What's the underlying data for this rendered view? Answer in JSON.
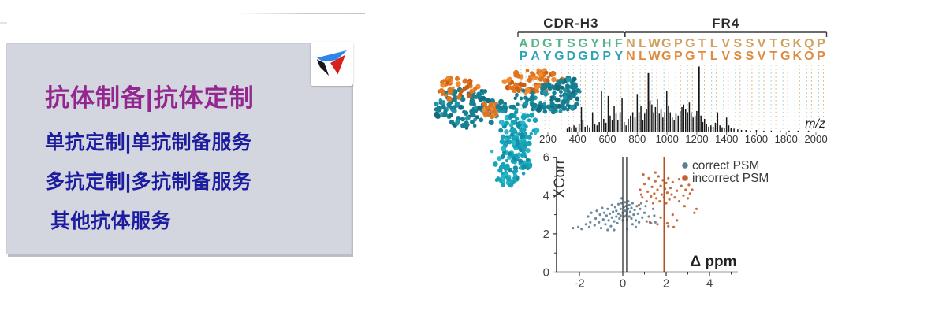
{
  "panel": {
    "title": "抗体制备|抗体定制",
    "items": [
      {
        "label": "单抗定制|单抗制备服务"
      },
      {
        "label": "多抗定制|多抗制备服务"
      },
      {
        "label": "其他抗体服务"
      }
    ],
    "colors": {
      "bg": "#d3d6de",
      "title": "#93278f",
      "item": "#1c1ca0"
    }
  },
  "logo": {
    "icon": "triangle-swoosh-logo",
    "colors": {
      "blue": "#2e86e8",
      "black": "#17171d",
      "red": "#d9201a"
    }
  },
  "figure": {
    "alignment": {
      "regions": [
        {
          "label": "CDR-H3",
          "start": 0,
          "end": 9
        },
        {
          "label": "FR4",
          "start": 9,
          "end": 26
        }
      ],
      "rows": [
        {
          "seq": "ADGTSGYHFNLWGPGTLVSSVTGKQP",
          "cdr_color": "#57b389",
          "fr_color": "#cfa05e"
        },
        {
          "seq": "PAYGDGDPYNLWGPGTLVSSVTGKOP",
          "cdr_color": "#2fa3b4",
          "fr_color": "#df8a3f"
        }
      ],
      "guide_colors": {
        "cdr": "#8ecbc6",
        "fr": "#dcb87f"
      },
      "label_color": "#2b2b2b"
    },
    "chart_data": [
      {
        "type": "bar",
        "name": "annotated-msms-spectrum",
        "xlabel": "m/z",
        "x_ticks": [
          200,
          400,
          600,
          800,
          1000,
          1200,
          1400,
          1600,
          1800,
          2000
        ],
        "xlim": [
          200,
          2000
        ],
        "ylim": [
          0,
          1
        ],
        "grid": false,
        "bar_color": "#161616",
        "axis_color": "#8a8a8a",
        "peaks": [
          [
            330,
            0.05
          ],
          [
            345,
            0.08
          ],
          [
            360,
            0.06
          ],
          [
            375,
            0.1
          ],
          [
            390,
            0.07
          ],
          [
            410,
            0.12
          ],
          [
            425,
            0.38
          ],
          [
            435,
            0.18
          ],
          [
            450,
            0.08
          ],
          [
            465,
            0.1
          ],
          [
            480,
            0.07
          ],
          [
            500,
            0.3
          ],
          [
            515,
            0.12
          ],
          [
            530,
            0.1
          ],
          [
            545,
            0.15
          ],
          [
            560,
            0.62
          ],
          [
            575,
            0.2
          ],
          [
            590,
            0.14
          ],
          [
            605,
            0.55
          ],
          [
            618,
            0.25
          ],
          [
            632,
            0.18
          ],
          [
            645,
            0.4
          ],
          [
            658,
            0.28
          ],
          [
            670,
            0.18
          ],
          [
            685,
            0.3
          ],
          [
            698,
            0.52
          ],
          [
            712,
            0.15
          ],
          [
            725,
            0.1
          ],
          [
            740,
            0.2
          ],
          [
            755,
            0.25
          ],
          [
            770,
            0.3
          ],
          [
            785,
            0.22
          ],
          [
            800,
            0.58
          ],
          [
            812,
            0.3
          ],
          [
            825,
            0.4
          ],
          [
            838,
            0.18
          ],
          [
            850,
            0.28
          ],
          [
            862,
            0.35
          ],
          [
            875,
            0.9
          ],
          [
            886,
            0.48
          ],
          [
            898,
            0.42
          ],
          [
            910,
            0.3
          ],
          [
            922,
            0.38
          ],
          [
            935,
            0.5
          ],
          [
            948,
            0.28
          ],
          [
            960,
            0.35
          ],
          [
            972,
            0.22
          ],
          [
            985,
            0.3
          ],
          [
            998,
            0.62
          ],
          [
            1010,
            0.4
          ],
          [
            1022,
            0.3
          ],
          [
            1035,
            0.22
          ],
          [
            1048,
            0.18
          ],
          [
            1060,
            0.28
          ],
          [
            1075,
            0.25
          ],
          [
            1088,
            0.32
          ],
          [
            1100,
            0.38
          ],
          [
            1112,
            0.42
          ],
          [
            1125,
            0.35
          ],
          [
            1138,
            0.3
          ],
          [
            1150,
            0.45
          ],
          [
            1162,
            0.3
          ],
          [
            1175,
            0.22
          ],
          [
            1188,
            0.25
          ],
          [
            1200,
            0.32
          ],
          [
            1215,
            1.0
          ],
          [
            1228,
            0.25
          ],
          [
            1240,
            0.15
          ],
          [
            1252,
            0.2
          ],
          [
            1265,
            0.12
          ],
          [
            1280,
            0.08
          ],
          [
            1295,
            0.1
          ],
          [
            1310,
            0.08
          ],
          [
            1325,
            0.14
          ],
          [
            1340,
            0.3
          ],
          [
            1355,
            0.1
          ],
          [
            1370,
            0.07
          ],
          [
            1385,
            0.06
          ],
          [
            1400,
            0.22
          ],
          [
            1415,
            0.1
          ],
          [
            1430,
            0.06
          ],
          [
            1450,
            0.05
          ],
          [
            1475,
            0.04
          ],
          [
            1500,
            0.03
          ],
          [
            1530,
            0.03
          ],
          [
            1560,
            0.02
          ],
          [
            1600,
            0.03
          ],
          [
            1650,
            0.02
          ],
          [
            1700,
            0.02
          ],
          [
            1760,
            0.02
          ],
          [
            1820,
            0.02
          ],
          [
            1880,
            0.02
          ],
          [
            1950,
            0.02
          ]
        ]
      },
      {
        "type": "scatter",
        "name": "psm-validation-plot",
        "xlabel": "Δ ppm",
        "ylabel": "XCorr",
        "xlim": [
          -3,
          5.3
        ],
        "ylim": [
          0,
          6
        ],
        "x_ticks": [
          -2,
          0,
          2,
          4
        ],
        "y_ticks": [
          0,
          2,
          4,
          6
        ],
        "legend_position": "top-right",
        "axis_color": "#333333",
        "tick_label_color": "#444444",
        "vlines": [
          {
            "x": 0.0,
            "color": "#4a4a4a"
          },
          {
            "x": 0.18,
            "color": "#4a4a4a"
          },
          {
            "x": 1.9,
            "color": "#b25121"
          }
        ],
        "series": [
          {
            "name": "correct PSM",
            "color": "#5b7f96",
            "points": [
              [
                -2.3,
                2.3
              ],
              [
                -2.05,
                2.35
              ],
              [
                -1.9,
                2.25
              ],
              [
                -1.7,
                2.5
              ],
              [
                -1.6,
                2.9
              ],
              [
                -1.55,
                2.35
              ],
              [
                -1.5,
                2.6
              ],
              [
                -1.45,
                3.1
              ],
              [
                -1.3,
                2.45
              ],
              [
                -1.25,
                2.8
              ],
              [
                -1.2,
                3.2
              ],
              [
                -1.1,
                2.6
              ],
              [
                -1.05,
                3.0
              ],
              [
                -1.0,
                2.3
              ],
              [
                -0.95,
                3.35
              ],
              [
                -0.9,
                2.75
              ],
              [
                -0.85,
                3.1
              ],
              [
                -0.8,
                2.5
              ],
              [
                -0.75,
                2.95
              ],
              [
                -0.7,
                3.3
              ],
              [
                -0.7,
                2.2
              ],
              [
                -0.65,
                2.7
              ],
              [
                -0.6,
                3.05
              ],
              [
                -0.55,
                2.4
              ],
              [
                -0.5,
                3.5
              ],
              [
                -0.5,
                2.85
              ],
              [
                -0.45,
                3.15
              ],
              [
                -0.4,
                2.65
              ],
              [
                -0.4,
                2.2
              ],
              [
                -0.35,
                3.4
              ],
              [
                -0.3,
                2.9
              ],
              [
                -0.3,
                3.2
              ],
              [
                -0.25,
                2.55
              ],
              [
                -0.2,
                3.05
              ],
              [
                -0.2,
                3.55
              ],
              [
                -0.15,
                2.8
              ],
              [
                -0.1,
                3.3
              ],
              [
                -0.1,
                2.95
              ],
              [
                -0.05,
                3.6
              ],
              [
                -0.05,
                3.85
              ],
              [
                0,
                3.1
              ],
              [
                0,
                2.7
              ],
              [
                0.05,
                3.4
              ],
              [
                0.05,
                2.9
              ],
              [
                0.1,
                3.2
              ],
              [
                0.1,
                3.65
              ],
              [
                0.15,
                2.95
              ],
              [
                0.15,
                3.45
              ],
              [
                0.2,
                3.1
              ],
              [
                0.2,
                2.75
              ],
              [
                0.2,
                2.25
              ],
              [
                0.25,
                3.3
              ],
              [
                0.25,
                3.7
              ],
              [
                0.3,
                2.9
              ],
              [
                0.3,
                3.5
              ],
              [
                0.35,
                3.15
              ],
              [
                0.4,
                2.8
              ],
              [
                0.4,
                3.35
              ],
              [
                0.45,
                3.6
              ],
              [
                0.45,
                2.5
              ],
              [
                0.5,
                3.0
              ],
              [
                0.55,
                3.25
              ],
              [
                0.6,
                2.7
              ],
              [
                0.6,
                2.35
              ],
              [
                0.65,
                3.45
              ],
              [
                0.7,
                3.05
              ],
              [
                0.75,
                2.6
              ],
              [
                0.8,
                3.3
              ],
              [
                0.85,
                3.6
              ],
              [
                0.9,
                2.85
              ],
              [
                1.0,
                3.1
              ],
              [
                1.05,
                3.45
              ],
              [
                1.1,
                2.65
              ],
              [
                1.2,
                2.9
              ],
              [
                1.3,
                2.55
              ],
              [
                1.4,
                3.3
              ],
              [
                1.45,
                2.95
              ],
              [
                1.5,
                2.6
              ]
            ]
          },
          {
            "name": "incorrect PSM",
            "color": "#c4602f",
            "points": [
              [
                0.75,
                3.5
              ],
              [
                0.8,
                4.3
              ],
              [
                0.85,
                4.05
              ],
              [
                0.9,
                3.9
              ],
              [
                0.95,
                5.1
              ],
              [
                1.0,
                4.6
              ],
              [
                1.1,
                3.7
              ],
              [
                1.15,
                4.2
              ],
              [
                1.2,
                4.9
              ],
              [
                1.25,
                2.6
              ],
              [
                1.3,
                3.95
              ],
              [
                1.35,
                4.45
              ],
              [
                1.4,
                3.6
              ],
              [
                1.45,
                4.1
              ],
              [
                1.5,
                4.75
              ],
              [
                1.5,
                5.2
              ],
              [
                1.55,
                3.85
              ],
              [
                1.6,
                4.3
              ],
              [
                1.6,
                2.5
              ],
              [
                1.65,
                5.0
              ],
              [
                1.7,
                3.7
              ],
              [
                1.75,
                4.5
              ],
              [
                1.75,
                2.85
              ],
              [
                1.8,
                4.05
              ],
              [
                1.85,
                4.8
              ],
              [
                1.9,
                3.9
              ],
              [
                1.95,
                4.35
              ],
              [
                2.0,
                3.6
              ],
              [
                2.0,
                4.65
              ],
              [
                2.05,
                4.15
              ],
              [
                2.05,
                2.55
              ],
              [
                2.1,
                4.9
              ],
              [
                2.1,
                2.4
              ],
              [
                2.15,
                3.8
              ],
              [
                2.2,
                4.4
              ],
              [
                2.25,
                4.05
              ],
              [
                2.3,
                4.7
              ],
              [
                2.3,
                3.0
              ],
              [
                2.35,
                2.35
              ],
              [
                2.4,
                3.9
              ],
              [
                2.5,
                4.25
              ],
              [
                2.5,
                2.7
              ],
              [
                2.6,
                3.7
              ],
              [
                2.6,
                4.85
              ],
              [
                2.7,
                4.5
              ],
              [
                2.8,
                4.0
              ],
              [
                2.85,
                3.45
              ],
              [
                2.9,
                4.3
              ],
              [
                3.0,
                3.85
              ],
              [
                3.05,
                4.55
              ],
              [
                3.1,
                4.1
              ],
              [
                3.2,
                4.3
              ],
              [
                3.3,
                3.1
              ],
              [
                3.4,
                3.3
              ]
            ]
          }
        ]
      }
    ]
  }
}
